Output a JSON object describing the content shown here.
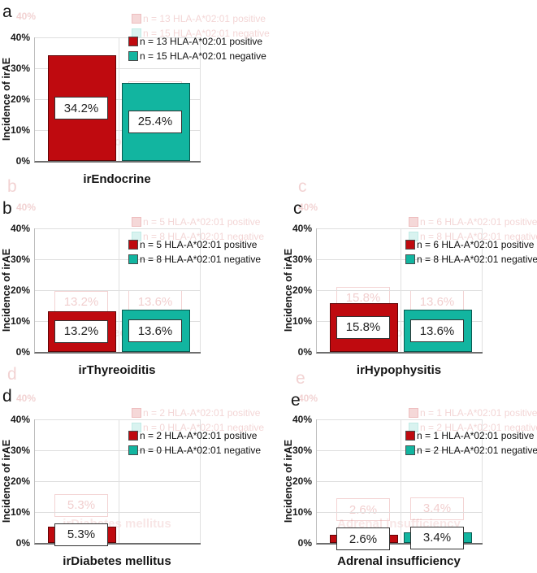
{
  "yticks": [
    "40%",
    "30%",
    "20%",
    "10%",
    "0%"
  ],
  "ylabel": "Incidence of irAE",
  "colors": {
    "positive": "#bf0a0f",
    "negative": "#12b5a0",
    "grid": "#dedede",
    "axis": "#6e6e6e",
    "value_box_border": "#333333"
  },
  "chart_data": [
    {
      "type": "bar",
      "panel_letter": "a",
      "xlabel": "irEndocrine",
      "ylabel": "Incidence of irAE",
      "ylim": [
        0,
        40
      ],
      "grid": true,
      "legend_position": "top-right",
      "series": [
        {
          "name": "n = 13 HLA-A*02:01 positive",
          "group": "HLA-A*02:01 positive",
          "n": 13,
          "value": 34.2,
          "label": "34.2%",
          "color_key": "positive"
        },
        {
          "name": "n = 15 HLA-A*02:01 negative",
          "group": "HLA-A*02:01 negative",
          "n": 15,
          "value": 25.4,
          "label": "25.4%",
          "color_key": "negative"
        }
      ]
    },
    {
      "type": "bar",
      "panel_letter": "b",
      "xlabel": "irThyreoiditis",
      "ylabel": "Incidence of irAE",
      "ylim": [
        0,
        40
      ],
      "grid": true,
      "legend_position": "top-right",
      "series": [
        {
          "name": "n = 5 HLA-A*02:01 positive",
          "group": "HLA-A*02:01 positive",
          "n": 5,
          "value": 13.2,
          "label": "13.2%",
          "color_key": "positive"
        },
        {
          "name": "n = 8 HLA-A*02:01 negative",
          "group": "HLA-A*02:01 negative",
          "n": 8,
          "value": 13.6,
          "label": "13.6%",
          "color_key": "negative"
        }
      ]
    },
    {
      "type": "bar",
      "panel_letter": "c",
      "xlabel": "irHypophysitis",
      "ylabel": "Incidence of irAE",
      "ylim": [
        0,
        40
      ],
      "grid": true,
      "legend_position": "top-right",
      "series": [
        {
          "name": "n = 6 HLA-A*02:01 positive",
          "group": "HLA-A*02:01 positive",
          "n": 6,
          "value": 15.8,
          "label": "15.8%",
          "color_key": "positive"
        },
        {
          "name": "n = 8 HLA-A*02:01 negative",
          "group": "HLA-A*02:01 negative",
          "n": 8,
          "value": 13.6,
          "label": "13.6%",
          "color_key": "negative"
        }
      ]
    },
    {
      "type": "bar",
      "panel_letter": "d",
      "xlabel": "irDiabetes mellitus",
      "ylabel": "Incidence of irAE",
      "ylim": [
        0,
        40
      ],
      "grid": true,
      "legend_position": "top-right",
      "series": [
        {
          "name": "n = 2 HLA-A*02:01 positive",
          "group": "HLA-A*02:01 positive",
          "n": 2,
          "value": 5.3,
          "label": "5.3%",
          "color_key": "positive"
        },
        {
          "name": "n = 0 HLA-A*02:01 negative",
          "group": "HLA-A*02:01 negative",
          "n": 0,
          "value": 0,
          "label": null,
          "color_key": "negative"
        }
      ]
    },
    {
      "type": "bar",
      "panel_letter": "e",
      "xlabel": "Adrenal insufficiency",
      "ylabel": "Incidence of irAE",
      "ylim": [
        0,
        40
      ],
      "grid": true,
      "legend_position": "top-right",
      "series": [
        {
          "name": "n = 1 HLA-A*02:01 positive",
          "group": "HLA-A*02:01 positive",
          "n": 1,
          "value": 2.6,
          "label": "2.6%",
          "color_key": "positive"
        },
        {
          "name": "n = 2 HLA-A*02:01 negative",
          "group": "HLA-A*02:01 negative",
          "n": 2,
          "value": 3.4,
          "label": "3.4%",
          "color_key": "negative"
        }
      ]
    }
  ]
}
